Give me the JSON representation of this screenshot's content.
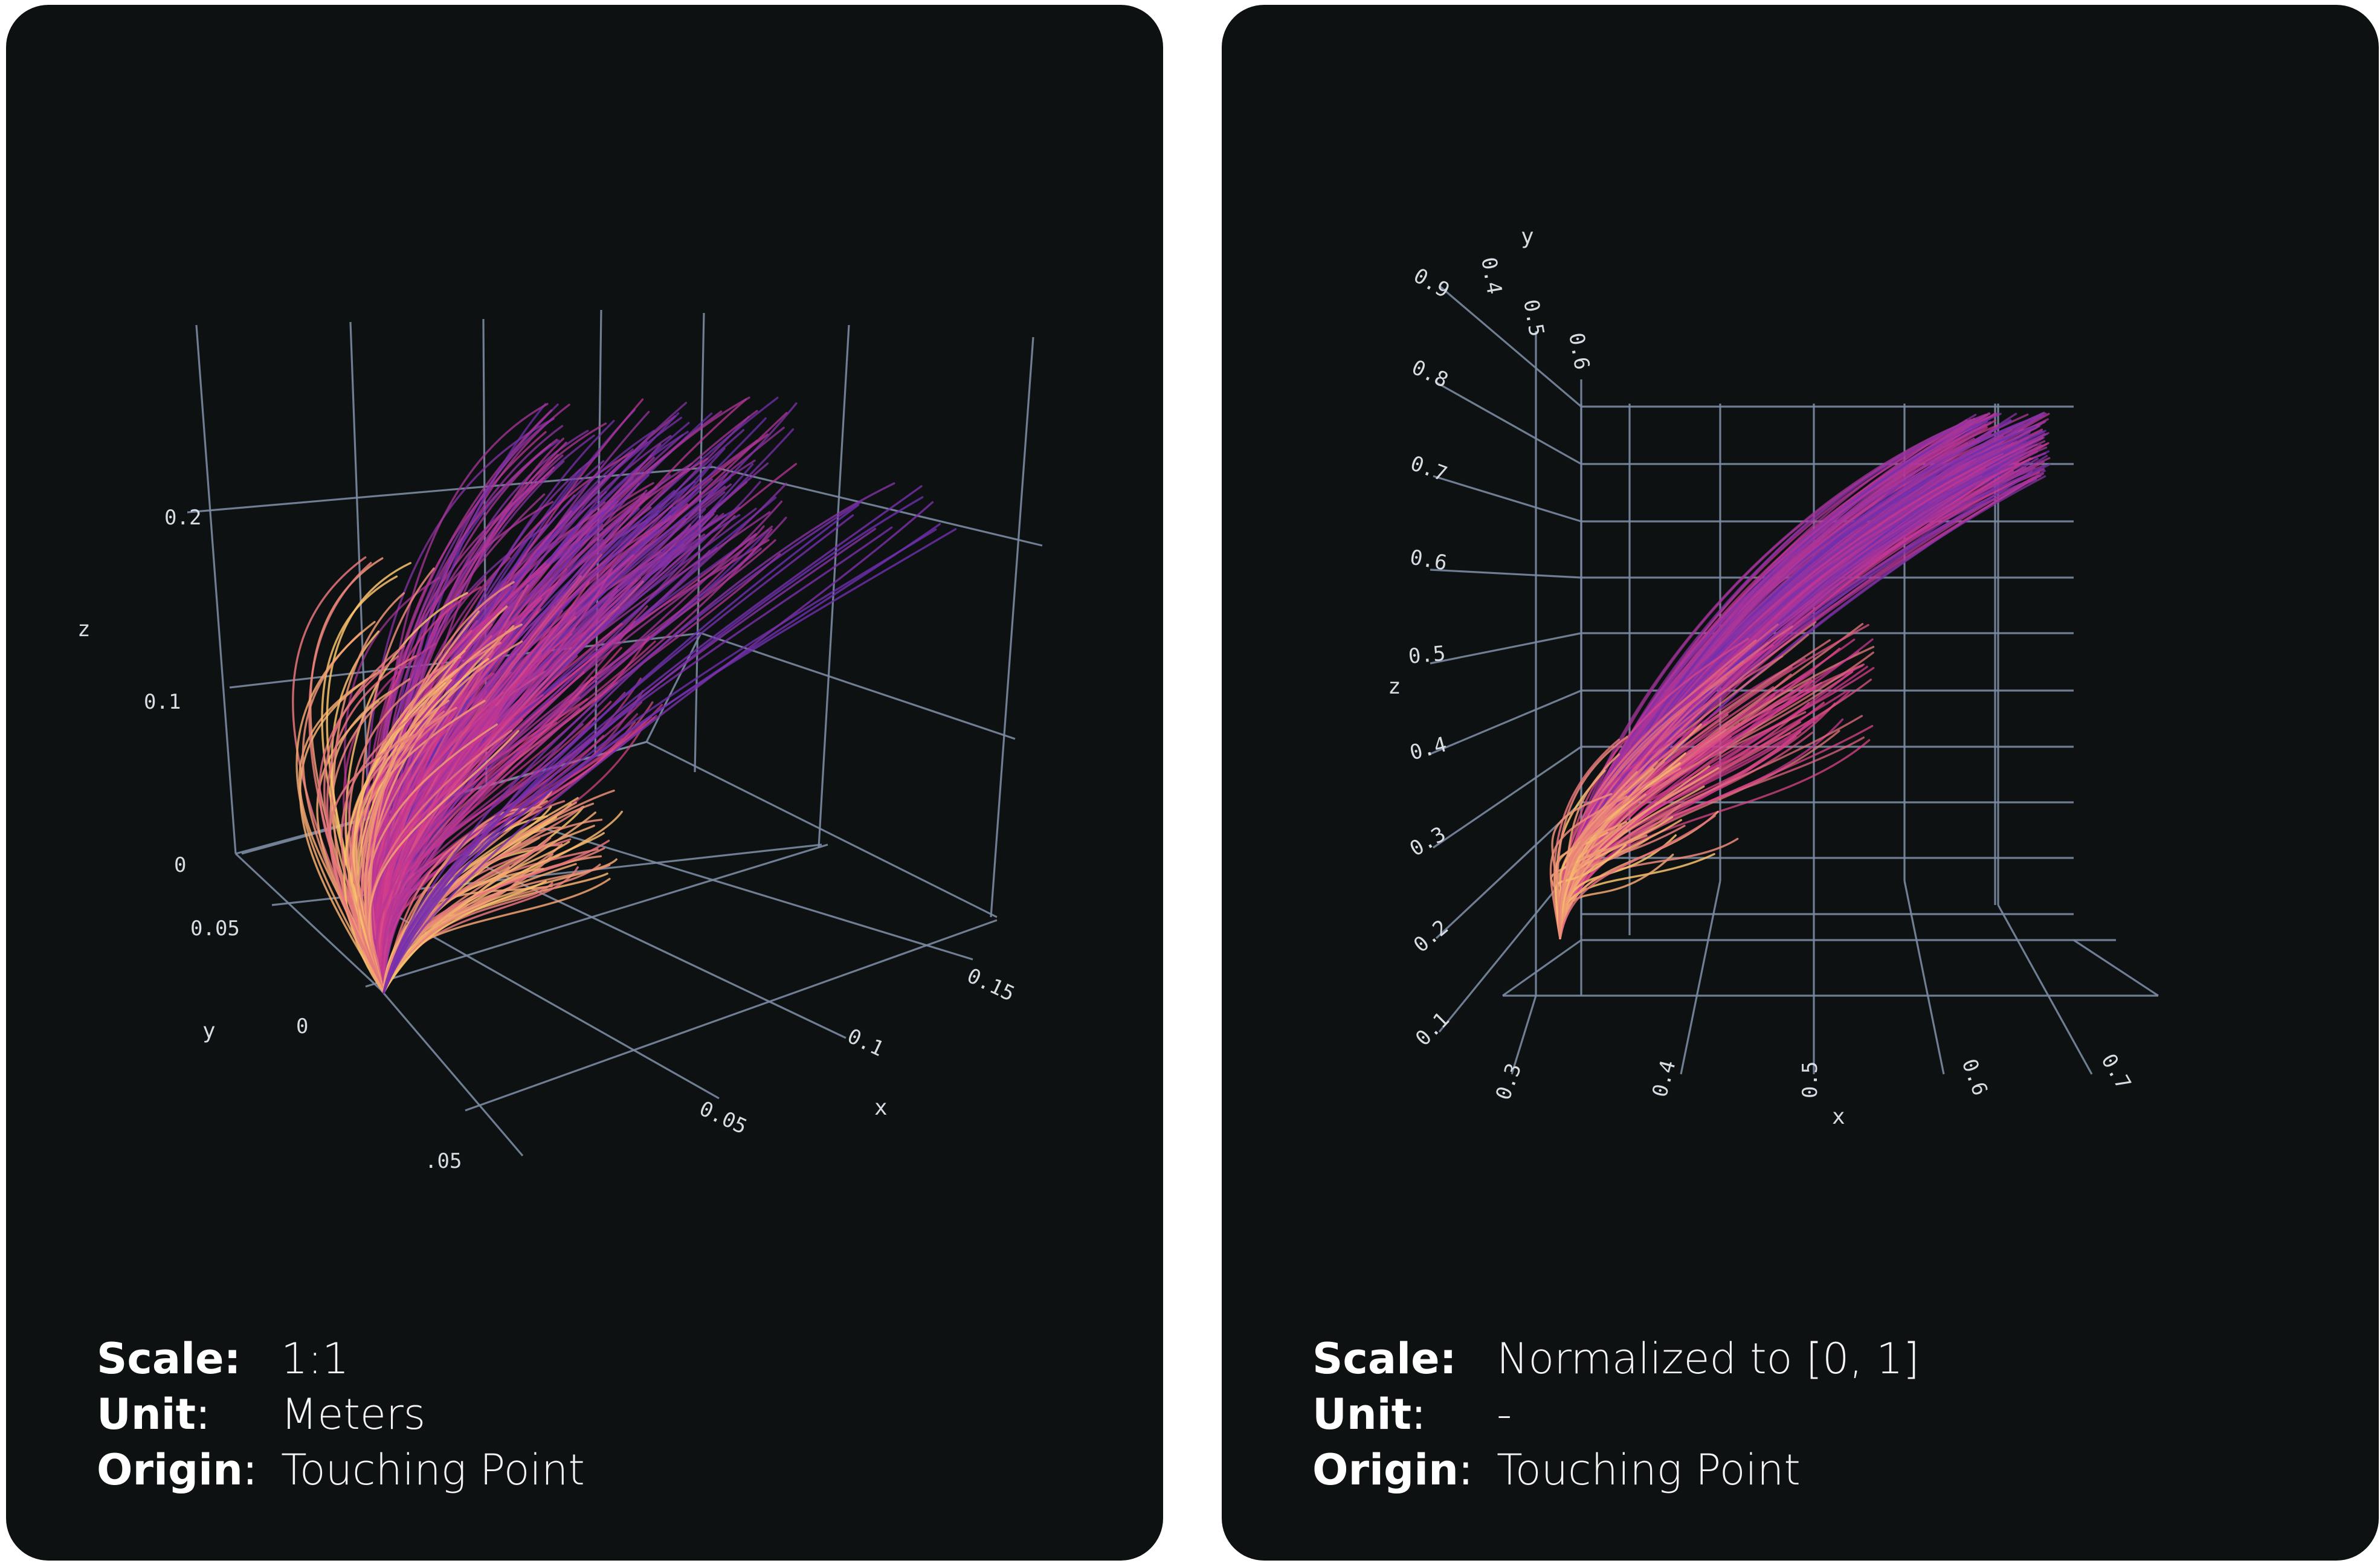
{
  "chart_data": [
    {
      "type": "line3d",
      "description": "3D trajectories from touching point",
      "axes": {
        "x": {
          "label": "x",
          "ticks": [
            "0.05",
            "0.1",
            "0.15"
          ],
          "range": [
            0,
            0.17
          ]
        },
        "y": {
          "label": "y",
          "ticks": [
            "0.05",
            "0",
            "-0.05"
          ],
          "range": [
            -0.06,
            0.06
          ]
        },
        "z": {
          "label": "z",
          "ticks": [
            "0",
            "0.1",
            "0.2"
          ],
          "range": [
            0,
            0.25
          ]
        }
      },
      "colormap": "plasma (yellow-orange at early points to purple at late points)",
      "grid": true,
      "info": {
        "scale_key": "Scale:",
        "scale_value": "1:1",
        "unit_key": "Unit",
        "unit_value": "Meters",
        "origin_key": "Origin",
        "origin_value": "Touching Point"
      }
    },
    {
      "type": "line3d",
      "axes": {
        "x": {
          "label": "x",
          "ticks": [
            "0.3",
            "0.4",
            "0.5",
            "0.6",
            "0.7"
          ],
          "range": [
            0.25,
            0.75
          ]
        },
        "y": {
          "label": "y",
          "ticks": [
            "0.4",
            "0.5",
            "0.6"
          ],
          "range": [
            0.35,
            0.65
          ]
        },
        "z": {
          "label": "z",
          "ticks": [
            "0.1",
            "0.2",
            "0.3",
            "0.4",
            "0.5",
            "0.6",
            "0.7",
            "0.8",
            "0.9"
          ],
          "range": [
            0.05,
            0.95
          ]
        }
      },
      "colormap": "plasma (yellow-orange at early points to purple at late points)",
      "grid": true,
      "info": {
        "scale_key": "Scale:",
        "scale_value": "Normalized to [0, 1]",
        "unit_key": "Unit",
        "unit_value": "-",
        "origin_key": "Origin",
        "origin_value": "Touching Point"
      }
    }
  ],
  "colors": {
    "panel_bg": "#0e1112",
    "grid": "#7b8aa3",
    "traj_start": "#f9c46b",
    "traj_mid": "#d6398a",
    "traj_end": "#6a2fb0"
  }
}
